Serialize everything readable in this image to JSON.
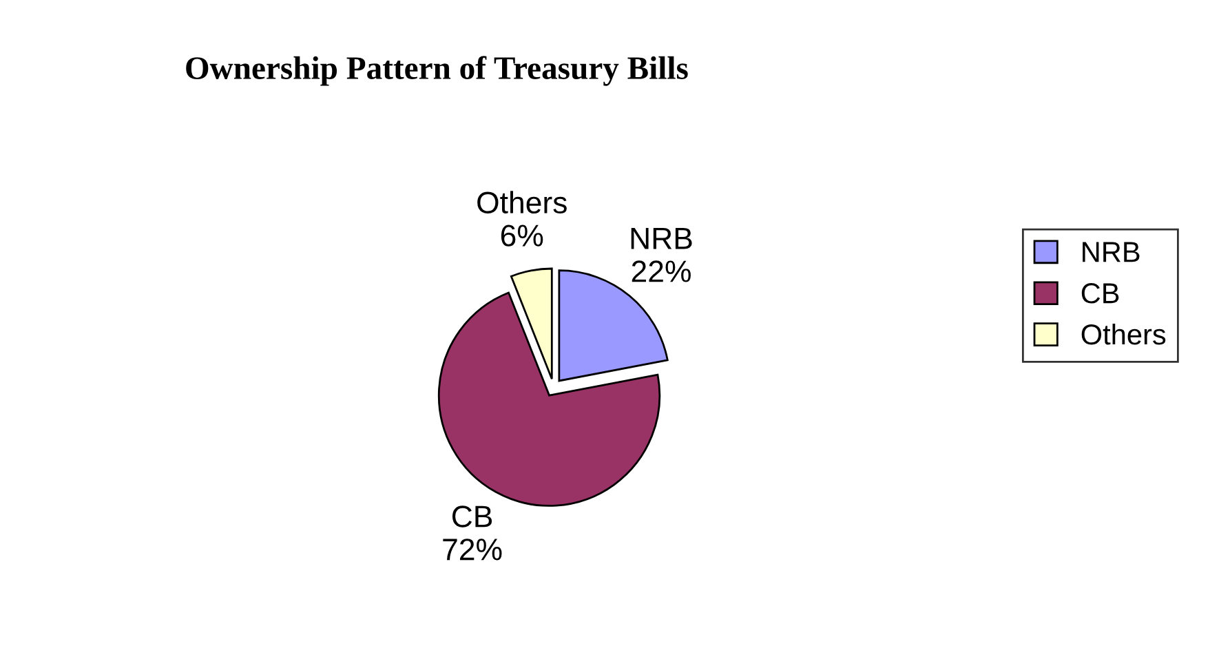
{
  "chart_data": {
    "type": "pie",
    "title": "Ownership Pattern of Treasury Bills",
    "categories": [
      "NRB",
      "CB",
      "Others"
    ],
    "values": [
      22,
      72,
      6
    ],
    "value_labels": [
      "22%",
      "72%",
      "6%"
    ],
    "colors": [
      "#9999ff",
      "#993366",
      "#ffffcc"
    ],
    "legend": "right"
  }
}
